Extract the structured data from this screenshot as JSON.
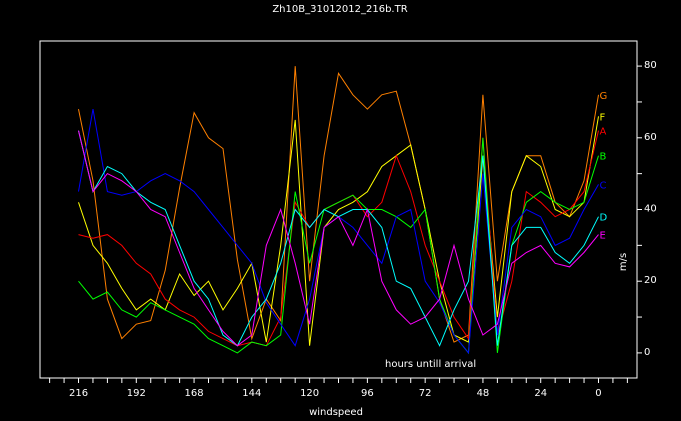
{
  "chart_data": {
    "type": "line",
    "title": "Zh10B_31012012_216b.TR",
    "xlabel": "windspeed",
    "ylabel": "m/s",
    "annotation": "hours untill arrival",
    "x_reversed": true,
    "xlim": [
      232,
      -16
    ],
    "ylim": [
      -7,
      87
    ],
    "x_ticks": [
      216,
      192,
      168,
      144,
      120,
      96,
      72,
      48,
      24,
      0
    ],
    "y_ticks": [
      0,
      20,
      40,
      60,
      80
    ],
    "y_axis_side": "right",
    "grid": false,
    "background": "#000000",
    "x": [
      216,
      210,
      204,
      198,
      192,
      186,
      180,
      174,
      168,
      162,
      156,
      150,
      144,
      138,
      132,
      126,
      120,
      114,
      108,
      102,
      96,
      90,
      84,
      78,
      72,
      66,
      60,
      54,
      48,
      42,
      36,
      30,
      24,
      18,
      12,
      6,
      0
    ],
    "series": [
      {
        "name": "G",
        "color": "#ff8000",
        "values": [
          68,
          48,
          15,
          4,
          8,
          9,
          23,
          46,
          67,
          60,
          57,
          26,
          4,
          15,
          9,
          80,
          20,
          55,
          78,
          72,
          68,
          72,
          73,
          58,
          40,
          15,
          3,
          5,
          72,
          20,
          45,
          55,
          55,
          42,
          38,
          48,
          72
        ]
      },
      {
        "name": "F",
        "color": "#ffff00",
        "values": [
          42,
          30,
          25,
          18,
          12,
          15,
          12,
          22,
          16,
          20,
          12,
          18,
          25,
          3,
          30,
          65,
          2,
          35,
          40,
          42,
          45,
          52,
          55,
          58,
          40,
          20,
          5,
          3,
          55,
          10,
          45,
          55,
          52,
          40,
          38,
          42,
          66
        ]
      },
      {
        "name": "A",
        "color": "#ff0000",
        "values": [
          33,
          32,
          33,
          30,
          25,
          22,
          15,
          12,
          10,
          6,
          4,
          2,
          3,
          2,
          10,
          42,
          35,
          40,
          42,
          44,
          38,
          42,
          55,
          45,
          30,
          20,
          10,
          4,
          60,
          5,
          20,
          45,
          42,
          38,
          40,
          45,
          62
        ]
      },
      {
        "name": "B",
        "color": "#00ff00",
        "values": [
          20,
          15,
          17,
          12,
          10,
          14,
          12,
          10,
          8,
          4,
          2,
          0,
          3,
          2,
          5,
          45,
          25,
          40,
          42,
          44,
          40,
          40,
          38,
          35,
          40,
          15,
          5,
          0,
          60,
          0,
          30,
          42,
          45,
          42,
          40,
          42,
          55
        ]
      },
      {
        "name": "C",
        "color": "#0000ff",
        "values": [
          45,
          68,
          45,
          44,
          45,
          48,
          50,
          48,
          45,
          40,
          35,
          30,
          25,
          14,
          8,
          2,
          15,
          35,
          38,
          35,
          30,
          25,
          38,
          40,
          20,
          14,
          5,
          0,
          50,
          5,
          35,
          40,
          38,
          30,
          32,
          40,
          47
        ]
      },
      {
        "name": "D",
        "color": "#00ffff",
        "values": [
          62,
          45,
          52,
          50,
          45,
          42,
          40,
          30,
          20,
          15,
          5,
          2,
          10,
          15,
          25,
          40,
          35,
          40,
          38,
          40,
          40,
          35,
          20,
          18,
          10,
          2,
          12,
          20,
          55,
          2,
          30,
          35,
          35,
          28,
          25,
          30,
          38
        ]
      },
      {
        "name": "E",
        "color": "#ff00ff",
        "values": [
          62,
          45,
          50,
          48,
          45,
          40,
          38,
          28,
          18,
          12,
          6,
          2,
          5,
          30,
          40,
          25,
          8,
          35,
          38,
          30,
          40,
          20,
          12,
          8,
          10,
          15,
          30,
          15,
          5,
          8,
          25,
          28,
          30,
          25,
          24,
          28,
          33
        ]
      }
    ]
  }
}
